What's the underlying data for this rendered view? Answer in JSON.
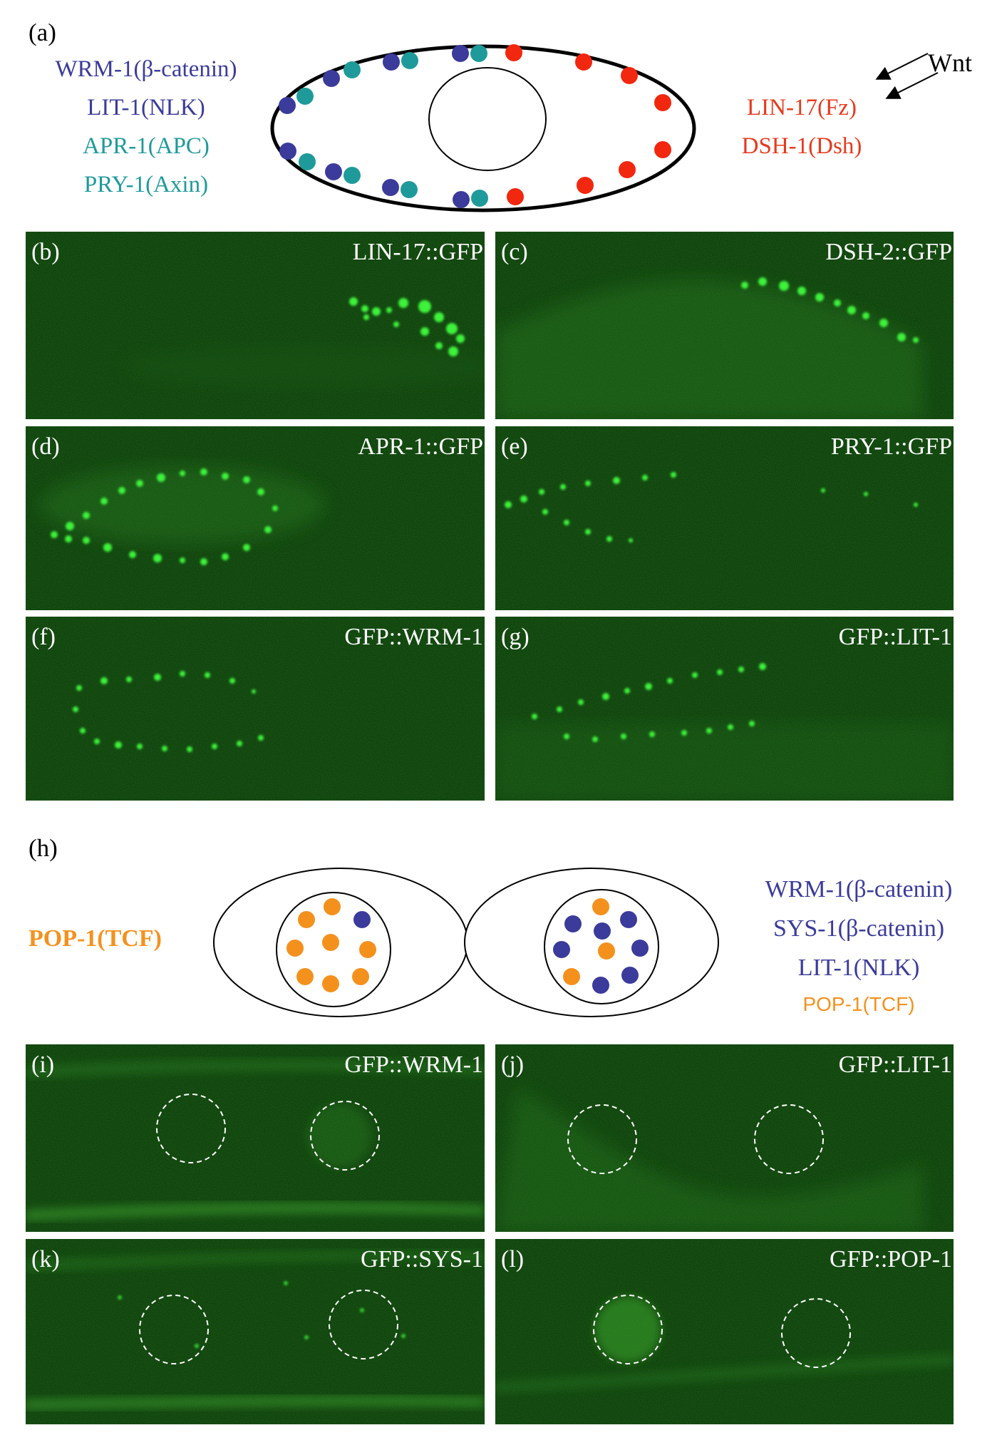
{
  "figure": {
    "panel_a": {
      "tag": "(a)",
      "left_labels": [
        {
          "text": "WRM-1(β-catenin)",
          "color": "#3b3b9b"
        },
        {
          "text": "LIT-1(NLK)",
          "color": "#3b3b9b"
        },
        {
          "text": "APR-1(APC)",
          "color": "#1f9a9a"
        },
        {
          "text": "PRY-1(Axin)",
          "color": "#1f9a9a"
        }
      ],
      "right_labels": [
        {
          "text": "LIN-17(Fz)",
          "color": "#e63a1d"
        },
        {
          "text": "DSH-1(Dsh)",
          "color": "#e63a1d"
        }
      ],
      "wnt_label": "Wnt"
    },
    "micrographs_top": [
      {
        "tag": "(b)",
        "name": "LIN-17::GFP"
      },
      {
        "tag": "(c)",
        "name": "DSH-2::GFP"
      },
      {
        "tag": "(d)",
        "name": "APR-1::GFP"
      },
      {
        "tag": "(e)",
        "name": "PRY-1::GFP"
      },
      {
        "tag": "(f)",
        "name": "GFP::WRM-1"
      },
      {
        "tag": "(g)",
        "name": "GFP::LIT-1"
      }
    ],
    "panel_h": {
      "tag": "(h)",
      "left_label": "POP-1(TCF)",
      "right_labels": [
        {
          "text": "WRM-1(β-catenin)",
          "color": "#3b3b9b"
        },
        {
          "text": "SYS-1(β-catenin)",
          "color": "#3b3b9b"
        },
        {
          "text": "LIT-1(NLK)",
          "color": "#3b3b9b"
        },
        {
          "text": "POP-1(TCF)",
          "color": "#f4911d"
        }
      ]
    },
    "micrographs_bottom": [
      {
        "tag": "(i)",
        "name": "GFP::WRM-1"
      },
      {
        "tag": "(j)",
        "name": "GFP::LIT-1"
      },
      {
        "tag": "(k)",
        "name": "GFP::SYS-1"
      },
      {
        "tag": "(l)",
        "name": "GFP::POP-1"
      }
    ]
  }
}
